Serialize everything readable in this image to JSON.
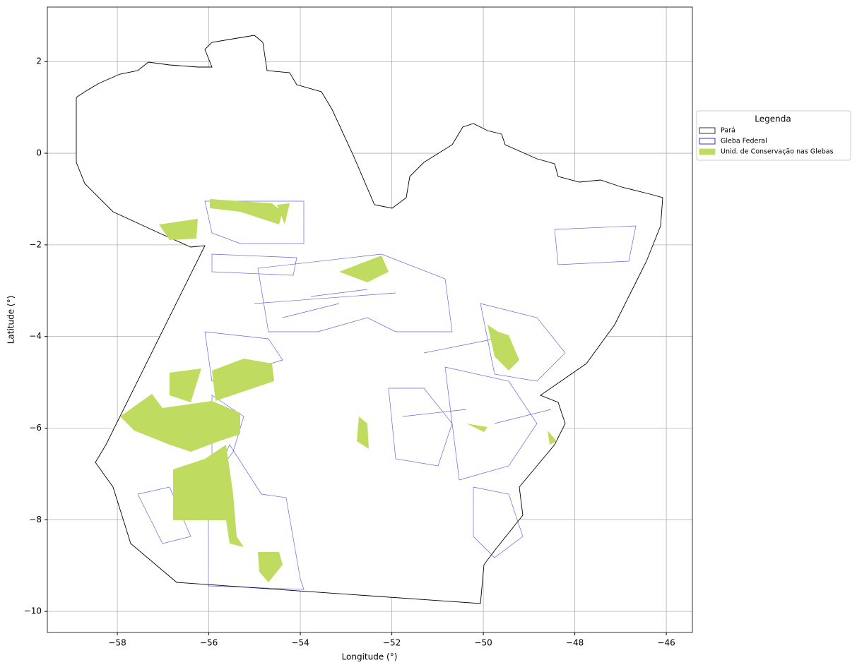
{
  "chart_data": {
    "type": "map",
    "x_label": "Longitude (°)",
    "y_label": "Latitude (°)",
    "xlim": [
      -59.53,
      -45.43
    ],
    "ylim": [
      -10.46,
      3.19
    ],
    "xticks": [
      {
        "value": -58,
        "label": "−58"
      },
      {
        "value": -56,
        "label": "−56"
      },
      {
        "value": -54,
        "label": "−54"
      },
      {
        "value": -52,
        "label": "−52"
      },
      {
        "value": -50,
        "label": "−50"
      },
      {
        "value": -48,
        "label": "−48"
      },
      {
        "value": -46,
        "label": "−46"
      }
    ],
    "yticks": [
      2,
      0,
      {
        "value": -2,
        "label": "−2"
      },
      {
        "value": -4,
        "label": "−4"
      },
      {
        "value": -6,
        "label": "−6"
      },
      {
        "value": -8,
        "label": "−8"
      },
      {
        "value": -10,
        "label": "−10"
      }
    ],
    "grid": true,
    "legend": {
      "title": "Legenda",
      "position": "right",
      "items": [
        {
          "name": "Pará",
          "color": "#ffffff",
          "edge": "#000000"
        },
        {
          "name": "Gleba Federal",
          "color": "#ffffff",
          "edge": "#0000cc"
        },
        {
          "name": "Unid. de Conservação nas Glebas",
          "color": "#c0dc60",
          "edge": "#c0dc60"
        }
      ]
    }
  }
}
